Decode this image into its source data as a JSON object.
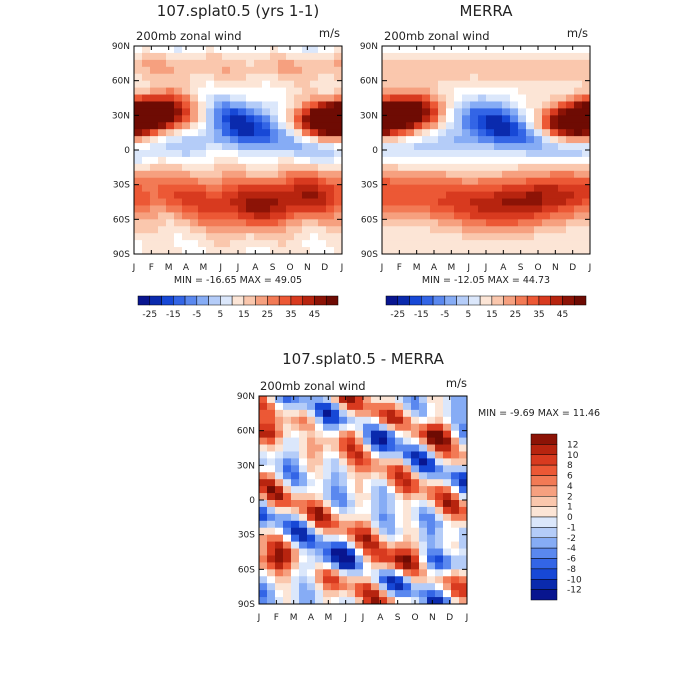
{
  "chart_data": [
    {
      "type": "heatmap",
      "title": "107.splat0.5 (yrs 1-1)",
      "subtitle": "200mb zonal wind",
      "units": "m/s",
      "x_ticks": [
        "J",
        "F",
        "M",
        "A",
        "M",
        "J",
        "J",
        "A",
        "S",
        "O",
        "N",
        "D",
        "J"
      ],
      "y_ticks": [
        "90N",
        "60N",
        "30N",
        "0",
        "30S",
        "60S",
        "90S"
      ],
      "minmax_text": "MIN = -16.65 MAX =  49.05",
      "min": -16.65,
      "max": 49.05,
      "colorbar": {
        "labels": [
          "-25",
          "-15",
          "-5",
          "5",
          "15",
          "25",
          "35",
          "45"
        ],
        "colors": [
          "#08158f",
          "#0a2aad",
          "#1748d6",
          "#3365e6",
          "#5a88ef",
          "#86acf5",
          "#b4ccf8",
          "#dbe7fb",
          "#fce5d6",
          "#fac7ad",
          "#f6a07f",
          "#f27a55",
          "#ec5835",
          "#d83a1f",
          "#b7240f",
          "#8c1306",
          "#6e0b03"
        ]
      }
    },
    {
      "type": "heatmap",
      "title": "MERRA",
      "subtitle": "200mb zonal wind",
      "units": "m/s",
      "x_ticks": [
        "J",
        "F",
        "M",
        "A",
        "M",
        "J",
        "J",
        "A",
        "S",
        "O",
        "N",
        "D",
        "J"
      ],
      "y_ticks": [
        "90N",
        "60N",
        "30N",
        "0",
        "30S",
        "60S",
        "90S"
      ],
      "minmax_text": "MIN = -12.05 MAX =  44.73",
      "min": -12.05,
      "max": 44.73,
      "colorbar": {
        "labels": [
          "-25",
          "-15",
          "-5",
          "5",
          "15",
          "25",
          "35",
          "45"
        ],
        "colors": [
          "#08158f",
          "#0a2aad",
          "#1748d6",
          "#3365e6",
          "#5a88ef",
          "#86acf5",
          "#b4ccf8",
          "#dbe7fb",
          "#fce5d6",
          "#fac7ad",
          "#f6a07f",
          "#f27a55",
          "#ec5835",
          "#d83a1f",
          "#b7240f",
          "#8c1306",
          "#6e0b03"
        ]
      }
    },
    {
      "type": "heatmap",
      "title": "107.splat0.5 - MERRA",
      "subtitle": "200mb zonal wind",
      "units": "m/s",
      "x_ticks": [
        "J",
        "F",
        "M",
        "A",
        "M",
        "J",
        "J",
        "A",
        "S",
        "O",
        "N",
        "D",
        "J"
      ],
      "y_ticks": [
        "90N",
        "60N",
        "30N",
        "0",
        "30S",
        "60S",
        "90S"
      ],
      "minmax_text": "MIN =  -9.69 MAX =  11.46",
      "min": -9.69,
      "max": 11.46,
      "colorbar": {
        "labels": [
          "12",
          "10",
          "8",
          "6",
          "4",
          "2",
          "1",
          "0",
          "-1",
          "-2",
          "-4",
          "-6",
          "-8",
          "-10",
          "-12"
        ],
        "colors": [
          "#8c1306",
          "#b7240f",
          "#d83a1f",
          "#ec5835",
          "#f27a55",
          "#f6a07f",
          "#fac7ad",
          "#fce5d6",
          "#dbe7fb",
          "#b4ccf8",
          "#86acf5",
          "#5a88ef",
          "#3365e6",
          "#1748d6",
          "#0a2aad",
          "#08158f"
        ]
      }
    }
  ]
}
